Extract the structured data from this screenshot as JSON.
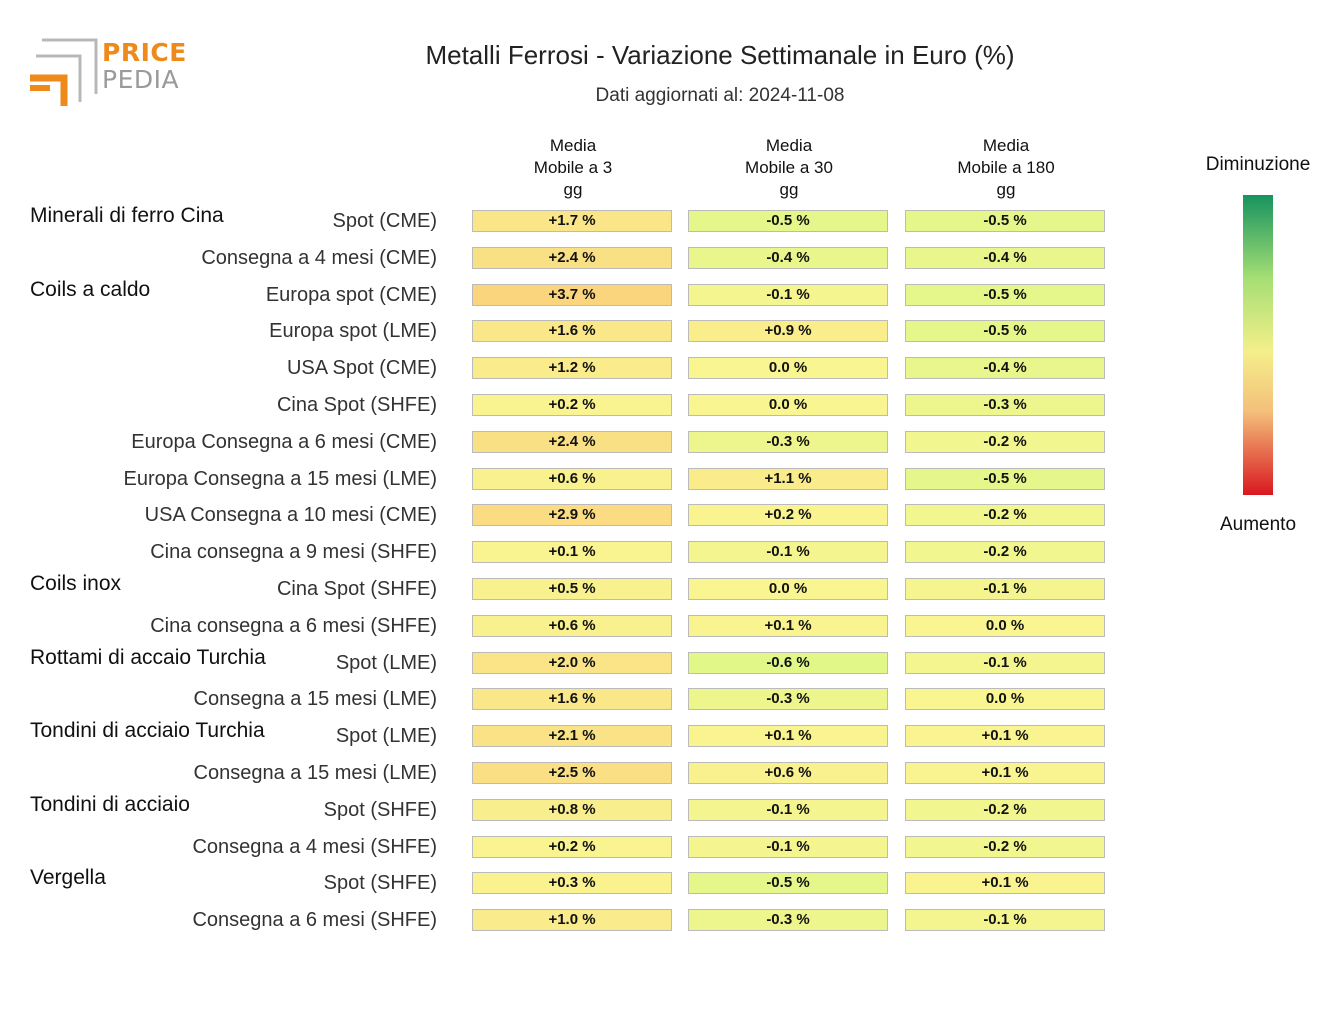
{
  "logo": {
    "line1": "PRICE",
    "line2": "PEDIA",
    "colors": {
      "accent": "#ee8a1a",
      "grey": "#9a9a9a"
    }
  },
  "header": {
    "title": "Metalli Ferrosi - Variazione Settimanale in Euro (%)",
    "subtitle": "Dati aggiornati al: 2024-11-08"
  },
  "legend": {
    "top": "Diminuzione",
    "bottom": "Aumento"
  },
  "chart_data": {
    "type": "table",
    "title": "Metalli Ferrosi - Variazione Settimanale in Euro (%)",
    "columns": [
      [
        "Media",
        "Mobile a 3",
        "gg"
      ],
      [
        "Media",
        "Mobile a 30",
        "gg"
      ],
      [
        "Media",
        "Mobile a 180",
        "gg"
      ]
    ],
    "groups": [
      {
        "name": "Minerali di ferro Cina",
        "rows": [
          {
            "label": "Spot (CME)",
            "values": [
              "+1.7 %",
              "-0.5 %",
              "-0.5 %"
            ]
          },
          {
            "label": "Consegna a 4 mesi (CME)",
            "values": [
              "+2.4 %",
              "-0.4 %",
              "-0.4 %"
            ]
          }
        ]
      },
      {
        "name": "Coils a caldo",
        "rows": [
          {
            "label": "Europa spot (CME)",
            "values": [
              "+3.7 %",
              "-0.1 %",
              "-0.5 %"
            ]
          },
          {
            "label": "Europa spot (LME)",
            "values": [
              "+1.6 %",
              "+0.9 %",
              "-0.5 %"
            ]
          },
          {
            "label": "USA Spot (CME)",
            "values": [
              "+1.2 %",
              "0.0 %",
              "-0.4 %"
            ]
          },
          {
            "label": "Cina Spot (SHFE)",
            "values": [
              "+0.2 %",
              "0.0 %",
              "-0.3 %"
            ]
          },
          {
            "label": "Europa Consegna a 6 mesi (CME)",
            "values": [
              "+2.4 %",
              "-0.3 %",
              "-0.2 %"
            ]
          },
          {
            "label": "Europa Consegna a 15 mesi (LME)",
            "values": [
              "+0.6 %",
              "+1.1 %",
              "-0.5 %"
            ]
          },
          {
            "label": "USA Consegna a 10 mesi (CME)",
            "values": [
              "+2.9 %",
              "+0.2 %",
              "-0.2 %"
            ]
          },
          {
            "label": "Cina consegna a 9 mesi (SHFE)",
            "values": [
              "+0.1 %",
              "-0.1 %",
              "-0.2 %"
            ]
          }
        ]
      },
      {
        "name": "Coils inox",
        "rows": [
          {
            "label": "Cina Spot (SHFE)",
            "values": [
              "+0.5 %",
              "0.0 %",
              "-0.1 %"
            ]
          },
          {
            "label": "Cina consegna a 6 mesi (SHFE)",
            "values": [
              "+0.6 %",
              "+0.1 %",
              "0.0 %"
            ]
          }
        ]
      },
      {
        "name": "Rottami di accaio Turchia",
        "rows": [
          {
            "label": "Spot (LME)",
            "values": [
              "+2.0 %",
              "-0.6 %",
              "-0.1 %"
            ]
          },
          {
            "label": "Consegna a 15 mesi (LME)",
            "values": [
              "+1.6 %",
              "-0.3 %",
              "0.0 %"
            ]
          }
        ]
      },
      {
        "name": "Tondini di acciaio Turchia",
        "rows": [
          {
            "label": "Spot (LME)",
            "values": [
              "+2.1 %",
              "+0.1 %",
              "+0.1 %"
            ]
          },
          {
            "label": "Consegna a 15 mesi (LME)",
            "values": [
              "+2.5 %",
              "+0.6 %",
              "+0.1 %"
            ]
          }
        ]
      },
      {
        "name": "Tondini di acciaio",
        "rows": [
          {
            "label": "Spot (SHFE)",
            "values": [
              "+0.8 %",
              "-0.1 %",
              "-0.2 %"
            ]
          },
          {
            "label": "Consegna a 4 mesi (SHFE)",
            "values": [
              "+0.2 %",
              "-0.1 %",
              "-0.2 %"
            ]
          }
        ]
      },
      {
        "name": "Vergella",
        "rows": [
          {
            "label": "Spot (SHFE)",
            "values": [
              "+0.3 %",
              "-0.5 %",
              "+0.1 %"
            ]
          },
          {
            "label": "Consegna a 6 mesi (SHFE)",
            "values": [
              "+1.0 %",
              "-0.3 %",
              "-0.1 %"
            ]
          }
        ]
      }
    ],
    "color_scale": {
      "decrease": "#17935f",
      "neutral": "#f9f591",
      "increase": "#d81820"
    }
  }
}
